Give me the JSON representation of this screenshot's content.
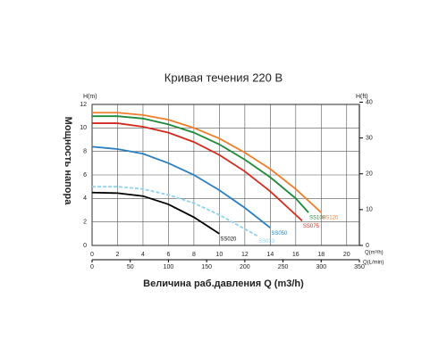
{
  "chart_data": {
    "type": "line",
    "title": "Кривая течения 220 В",
    "y_label": "Мощность напора",
    "x_label": "Величина раб.давления Q (m3/h)",
    "y_unit": "H(m)",
    "y2_unit": "H(ft)",
    "x_unit": "Q(m³/h)",
    "x2_unit": "Q(L/min)",
    "xlim": [
      0,
      21
    ],
    "xticks": [
      0,
      2,
      4,
      6,
      8,
      10,
      12,
      14,
      16,
      18,
      20
    ],
    "x2lim": [
      0,
      350
    ],
    "x2ticks": [
      0,
      50,
      100,
      150,
      200,
      250,
      300,
      350
    ],
    "ylim": [
      0,
      12
    ],
    "yticks": [
      0,
      2,
      4,
      6,
      8,
      10,
      12
    ],
    "y2lim": [
      0,
      39.37
    ],
    "y2ticks": [
      0,
      10,
      20,
      30,
      40
    ],
    "grid": true,
    "series": [
      {
        "name": "SS020",
        "color": "#000000",
        "style": "solid",
        "x": [
          0,
          2,
          4,
          6,
          8,
          10
        ],
        "values": [
          4.5,
          4.45,
          4.2,
          3.5,
          2.4,
          1.0
        ]
      },
      {
        "name": "SS033",
        "color": "#8fd3ee",
        "style": "dashed",
        "x": [
          0,
          2,
          4,
          6,
          8,
          10,
          12,
          13
        ],
        "values": [
          5.0,
          5.0,
          4.8,
          4.3,
          3.6,
          2.6,
          1.4,
          0.8
        ]
      },
      {
        "name": "SS050",
        "color": "#2a7fc0",
        "style": "solid",
        "x": [
          0,
          2,
          4,
          6,
          8,
          10,
          12,
          14
        ],
        "values": [
          8.4,
          8.2,
          7.8,
          7.0,
          6.0,
          4.7,
          3.2,
          1.5
        ]
      },
      {
        "name": "SS075",
        "color": "#d42a1e",
        "style": "solid",
        "x": [
          0,
          2,
          4,
          6,
          8,
          10,
          12,
          14,
          16,
          16.5
        ],
        "values": [
          10.4,
          10.4,
          10.1,
          9.6,
          8.8,
          7.7,
          6.3,
          4.6,
          2.6,
          2.1
        ]
      },
      {
        "name": "SS100",
        "color": "#1d8a3a",
        "style": "solid",
        "x": [
          0,
          2,
          4,
          6,
          8,
          10,
          12,
          14,
          16,
          17
        ],
        "values": [
          11.0,
          11.0,
          10.8,
          10.3,
          9.6,
          8.6,
          7.3,
          5.8,
          4.0,
          2.8
        ]
      },
      {
        "name": "SS120",
        "color": "#ef7d2a",
        "style": "solid",
        "x": [
          0,
          2,
          4,
          6,
          8,
          10,
          12,
          14,
          16,
          18
        ],
        "values": [
          11.3,
          11.3,
          11.1,
          10.7,
          10.0,
          9.1,
          7.9,
          6.5,
          4.8,
          2.8
        ]
      }
    ]
  }
}
